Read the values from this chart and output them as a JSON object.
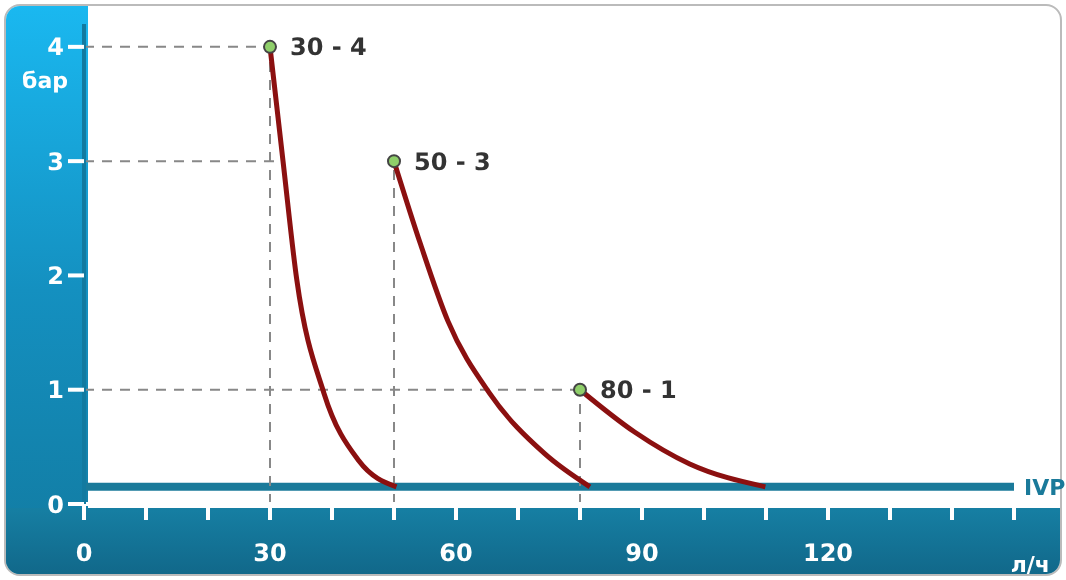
{
  "chart_data": {
    "type": "line",
    "xlabel": "л/ч",
    "ylabel": "бар",
    "xlim": [
      0,
      150
    ],
    "xticks": [
      0,
      {
        "value": 10,
        "label": null
      },
      {
        "value": 20,
        "label": null
      },
      30,
      {
        "value": 40,
        "label": null
      },
      {
        "value": 50,
        "label": null
      },
      60,
      {
        "value": 70,
        "label": null
      },
      {
        "value": 80,
        "label": null
      },
      90,
      {
        "value": 100,
        "label": null
      },
      {
        "value": 110,
        "label": null
      },
      120,
      {
        "value": 130,
        "label": null
      },
      {
        "value": 140,
        "label": null
      },
      {
        "value": 150,
        "label": null
      }
    ],
    "ylim": [
      0,
      4.2
    ],
    "yticks": [
      0,
      1,
      2,
      3,
      4
    ],
    "grid": false,
    "legend": false,
    "series": [
      {
        "color": "#8b1010",
        "x": [
          30,
          32.1,
          34.3,
          38.7,
          44.3,
          50.4
        ],
        "values": [
          4,
          3,
          1.97,
          0.97,
          0.38,
          0.15
        ]
      },
      {
        "color": "#8b1010",
        "x": [
          50,
          54.3,
          58.7,
          65.4,
          74.3,
          81.6
        ],
        "values": [
          3,
          2.27,
          1.6,
          0.97,
          0.44,
          0.15
        ]
      },
      {
        "color": "#8b1010",
        "x": [
          80,
          88.8,
          97.7,
          109.9
        ],
        "values": [
          1,
          0.63,
          0.35,
          0.15
        ]
      }
    ],
    "ref_lines": [
      {
        "axis": "y",
        "value": 0.15,
        "label": "IVP",
        "color": "#1a7a9a",
        "line_style": "solid"
      },
      {
        "axis": "x",
        "value": 30,
        "color": "#888888",
        "line_style": "dashed"
      },
      {
        "axis": "x",
        "value": 50,
        "color": "#888888",
        "line_style": "dashed"
      },
      {
        "axis": "x",
        "value": 80,
        "color": "#888888",
        "line_style": "dashed"
      },
      {
        "axis": "y",
        "value": 4,
        "color": "#888888",
        "line_style": "dashed"
      },
      {
        "axis": "y",
        "value": 3,
        "color": "#888888",
        "line_style": "dashed"
      },
      {
        "axis": "y",
        "value": 1,
        "color": "#888888",
        "line_style": "dashed"
      }
    ],
    "annotations": [
      {
        "text": "30 - 4",
        "x": 30,
        "y": 4
      },
      {
        "text": "50 - 3",
        "x": 50,
        "y": 3
      },
      {
        "text": "80 - 1",
        "x": 80,
        "y": 1
      }
    ]
  }
}
